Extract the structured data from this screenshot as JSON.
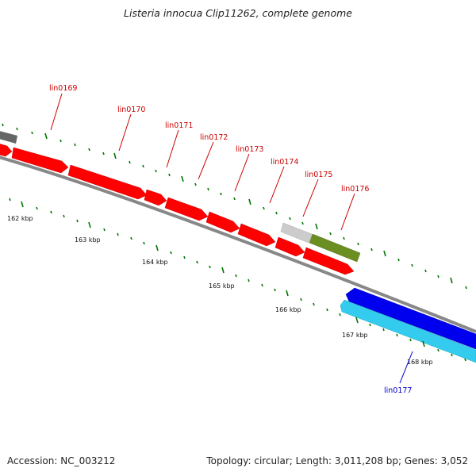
{
  "header": {
    "title": "Listeria innocua Clip11262, complete genome"
  },
  "footer": {
    "accession": "Accession: NC_003212",
    "stats": "Topology: circular; Length: 3,011,208 bp; Genes: 3,052"
  },
  "colors": {
    "forward_label": "#cc0000",
    "reverse_label": "#0000cc",
    "forward_gene": "#ff0000",
    "reverse_gene_dark": "#0000ee",
    "reverse_gene_light": "#33ccee",
    "olive_gene": "#6b8e23",
    "gray_gene": "#666666",
    "light_gray_gene": "#cccccc",
    "tick": "#007700",
    "backbone": "#888888"
  },
  "tick_labels": [
    "162 kbp",
    "163 kbp",
    "164 kbp",
    "165 kbp",
    "166 kbp",
    "167 kbp",
    "168 kbp"
  ],
  "gene_labels": {
    "forward": [
      "lin0169",
      "lin0170",
      "lin0171",
      "lin0172",
      "lin0173",
      "lin0174",
      "lin0175",
      "lin0176"
    ],
    "reverse": [
      "lin0177"
    ]
  }
}
